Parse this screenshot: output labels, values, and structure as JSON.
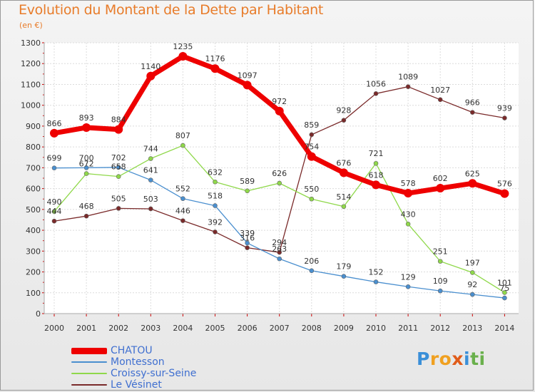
{
  "title": "Evolution du Montant de la Dette par Habitant",
  "subtitle": "(en €)",
  "brand": {
    "letters": [
      "P",
      "r",
      "o",
      "x",
      "i",
      "t",
      "i"
    ],
    "colors": [
      "#3a8fd8",
      "#f0a020",
      "#f0a020",
      "#e05c1a",
      "#3a8fd8",
      "#6ab04c",
      "#6ab04c"
    ]
  },
  "chart_data": {
    "type": "line",
    "x": [
      "2000",
      "2001",
      "2002",
      "2003",
      "2004",
      "2005",
      "2006",
      "2007",
      "2008",
      "2009",
      "2010",
      "2011",
      "2012",
      "2013",
      "2014"
    ],
    "ylim": [
      0,
      1300
    ],
    "yticks": [
      "0",
      "100",
      "200",
      "300",
      "400",
      "500",
      "600",
      "700",
      "800",
      "900",
      "1000",
      "1100",
      "1200",
      "1300"
    ],
    "grid": true,
    "legend_position": "bottom-left",
    "series": [
      {
        "name": "CHATOU",
        "color": "#ee0000",
        "values": [
          866,
          893,
          884,
          1140,
          1235,
          1176,
          1097,
          972,
          754,
          676,
          618,
          578,
          602,
          625,
          576
        ],
        "labels": [
          "866",
          "893",
          "884",
          "1140",
          "1235",
          "1176",
          "1097",
          "972",
          "754",
          "676",
          "618",
          "578",
          "602",
          "625",
          "576"
        ]
      },
      {
        "name": "Montesson",
        "color": "#4a8fcf",
        "values": [
          699,
          700,
          702,
          641,
          552,
          518,
          339,
          263,
          206,
          179,
          152,
          129,
          109,
          92,
          75
        ],
        "labels": [
          "699",
          "700",
          "702",
          "641",
          "552",
          "518",
          "339",
          "263",
          "206",
          "179",
          "152",
          "129",
          "109",
          "92",
          "75"
        ]
      },
      {
        "name": "Croissy-sur-Seine",
        "color": "#8fd84a",
        "values": [
          490,
          672,
          658,
          744,
          807,
          632,
          589,
          626,
          550,
          514,
          721,
          430,
          251,
          197,
          101
        ],
        "labels": [
          "490",
          "672",
          "658",
          "744",
          "807",
          "632",
          "589",
          "626",
          "550",
          "514",
          "721",
          "430",
          "251",
          "197",
          "101"
        ]
      },
      {
        "name": "Le Vésinet",
        "color": "#7a2a2a",
        "values": [
          444,
          468,
          505,
          503,
          446,
          392,
          316,
          294,
          859,
          928,
          1056,
          1089,
          1027,
          966,
          939
        ],
        "labels": [
          "444",
          "468",
          "505",
          "503",
          "446",
          "392",
          "316",
          "294",
          "859",
          "928",
          "1056",
          "1089",
          "1027",
          "966",
          "939"
        ]
      }
    ]
  }
}
